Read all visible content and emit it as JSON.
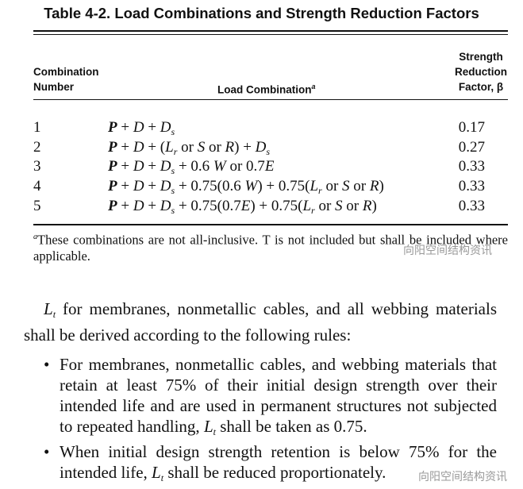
{
  "table": {
    "title": "Table 4-2. Load Combinations and Strength Reduction Factors",
    "headers": {
      "number": [
        "Combination",
        "Number"
      ],
      "combination": "Load Combination",
      "combination_sup": "a",
      "factor": [
        "Strength",
        "Reduction",
        "Factor, β"
      ]
    },
    "rows": [
      {
        "number": "1",
        "formula": [
          [
            "P",
            "b"
          ],
          [
            " + ",
            ""
          ],
          [
            "D",
            "i"
          ],
          [
            " + ",
            ""
          ],
          [
            "D",
            "i"
          ],
          [
            "s",
            "sub"
          ]
        ],
        "factor": "0.17"
      },
      {
        "number": "2",
        "formula": [
          [
            "P",
            "b"
          ],
          [
            " + ",
            ""
          ],
          [
            "D",
            "i"
          ],
          [
            " + (",
            ""
          ],
          [
            "L",
            "i"
          ],
          [
            "r",
            "sub"
          ],
          [
            " or ",
            ""
          ],
          [
            "S",
            "i"
          ],
          [
            " or ",
            ""
          ],
          [
            "R",
            "i"
          ],
          [
            ") + ",
            ""
          ],
          [
            "D",
            "i"
          ],
          [
            "s",
            "sub"
          ]
        ],
        "factor": "0.27"
      },
      {
        "number": "3",
        "formula": [
          [
            "P",
            "b"
          ],
          [
            " + ",
            ""
          ],
          [
            "D",
            "i"
          ],
          [
            " + ",
            ""
          ],
          [
            "D",
            "i"
          ],
          [
            "s",
            "sub"
          ],
          [
            " + 0.6 ",
            ""
          ],
          [
            "W",
            "i"
          ],
          [
            " or 0.7",
            ""
          ],
          [
            "E",
            "i"
          ]
        ],
        "factor": "0.33"
      },
      {
        "number": "4",
        "formula": [
          [
            "P",
            "b"
          ],
          [
            " + ",
            ""
          ],
          [
            "D",
            "i"
          ],
          [
            " + ",
            ""
          ],
          [
            "D",
            "i"
          ],
          [
            "s",
            "sub"
          ],
          [
            " + 0.75(0.6 ",
            ""
          ],
          [
            "W",
            "i"
          ],
          [
            ") + 0.75(",
            ""
          ],
          [
            "L",
            "i"
          ],
          [
            "r",
            "sub"
          ],
          [
            " or ",
            ""
          ],
          [
            "S",
            "i"
          ],
          [
            " or ",
            ""
          ],
          [
            "R",
            "i"
          ],
          [
            ")",
            ""
          ]
        ],
        "factor": "0.33"
      },
      {
        "number": "5",
        "formula": [
          [
            "P",
            "b"
          ],
          [
            " + ",
            ""
          ],
          [
            "D",
            "i"
          ],
          [
            " + ",
            ""
          ],
          [
            "D",
            "i"
          ],
          [
            "s",
            "sub"
          ],
          [
            " + 0.75(0.7",
            ""
          ],
          [
            "E",
            "i"
          ],
          [
            ") + 0.75(",
            ""
          ],
          [
            "L",
            "i"
          ],
          [
            "r",
            "sub"
          ],
          [
            " or ",
            ""
          ],
          [
            "S",
            "i"
          ],
          [
            " or ",
            ""
          ],
          [
            "R",
            "i"
          ],
          [
            ")",
            ""
          ]
        ],
        "factor": "0.33"
      }
    ],
    "footnote_mark": "a",
    "footnote": "These combinations are not all-inclusive. T is not included but shall be included where applicable."
  },
  "body": {
    "para_symbol": "L",
    "para_sub": "t",
    "para_text": " for membranes, nonmetallic cables, and all webbing materials shall be derived according to the following rules:",
    "bullets": [
      {
        "before": "For membranes, nonmetallic cables, and webbing materials that retain at least 75% of their initial design strength over their intended life and are used in permanent structures not subjected to repeated handling, ",
        "symbol": "L",
        "sub": "t",
        "after": " shall be taken as 0.75."
      },
      {
        "before": "When initial design strength retention is below 75% for the intended life, ",
        "symbol": "L",
        "sub": "t",
        "after": " shall be reduced proportionately."
      }
    ]
  },
  "watermark": "向阳空间结构资讯"
}
